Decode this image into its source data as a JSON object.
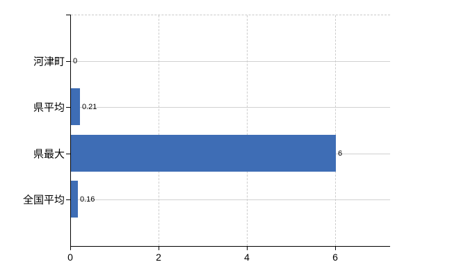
{
  "chart_data": {
    "type": "bar",
    "orientation": "horizontal",
    "title": "",
    "categories": [
      "河津町",
      "県平均",
      "県最大",
      "全国平均"
    ],
    "values": [
      0,
      0.21,
      6,
      0.16
    ],
    "value_labels": [
      "0",
      "0.21",
      "6",
      "0.16"
    ],
    "x_ticks": [
      0,
      2,
      4,
      6
    ],
    "x_tick_labels": [
      "0",
      "2",
      "4",
      "6"
    ],
    "xlim": [
      0,
      7.24
    ],
    "grid": true,
    "legend": false,
    "bar_color": "#3e6db5"
  },
  "colors": {
    "background": "#ffffff",
    "bar": "#3e6db5",
    "axis": "#000000",
    "h_gridline": "#d0d0d0",
    "v_gridline": "#cccccc",
    "plot_top_border": "#c9c9c9",
    "label_text": "#000000"
  }
}
